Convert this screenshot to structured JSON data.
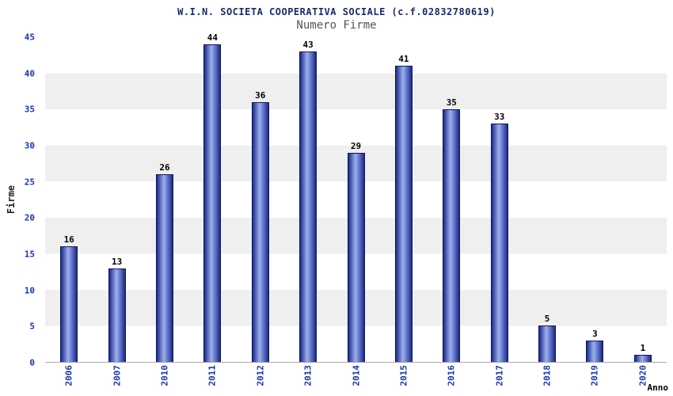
{
  "chart_data": {
    "type": "bar",
    "title": "W.I.N. SOCIETA COOPERATIVA SOCIALE (c.f.02832780619)",
    "subtitle": "Numero Firme",
    "xlabel": "Anno",
    "ylabel": "Firme",
    "categories": [
      "2006",
      "2007",
      "2010",
      "2011",
      "2012",
      "2013",
      "2014",
      "2015",
      "2016",
      "2017",
      "2018",
      "2019",
      "2020"
    ],
    "values": [
      16,
      13,
      26,
      44,
      36,
      43,
      29,
      41,
      35,
      33,
      5,
      3,
      1
    ],
    "ylim": [
      0,
      45
    ],
    "y_tick_step": 5,
    "grid": "alternating-bands",
    "legend_position": "none",
    "colors": {
      "bar_dark": "#1b2a87",
      "bar_light": "#9db0ef",
      "band_gray": "#efefef",
      "tick_label": "#1a35b0",
      "title": "#1b2a6b",
      "subtitle": "#555555",
      "value_label": "#000000"
    }
  }
}
